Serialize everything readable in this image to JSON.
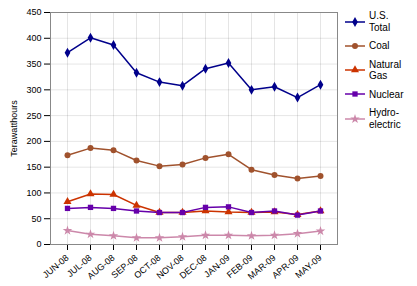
{
  "chart_data": {
    "type": "line",
    "categories": [
      "JUN-08",
      "JUL-08",
      "AUG-08",
      "SEP-08",
      "OCT-08",
      "NOV-08",
      "DEC-08",
      "JAN-09",
      "FEB-09",
      "MAR-09",
      "APR-09",
      "MAY-09"
    ],
    "series": [
      {
        "name": "U.S.\nTotal",
        "color": "#00008B",
        "marker": "diamond",
        "values": [
          372,
          401,
          387,
          333,
          315,
          308,
          341,
          352,
          300,
          306,
          285,
          310
        ]
      },
      {
        "name": "Coal",
        "color": "#A0522D",
        "marker": "circle",
        "values": [
          173,
          187,
          183,
          163,
          152,
          155,
          168,
          175,
          145,
          135,
          128,
          133
        ]
      },
      {
        "name": "Natural\nGas",
        "color": "#CC3300",
        "marker": "triangle",
        "values": [
          83,
          98,
          97,
          76,
          62,
          62,
          65,
          63,
          62,
          63,
          58,
          65
        ]
      },
      {
        "name": "Nuclear",
        "color": "#6600AA",
        "marker": "square",
        "values": [
          70,
          72,
          70,
          65,
          62,
          62,
          72,
          73,
          62,
          65,
          57,
          65
        ]
      },
      {
        "name": "Hydro-\nelectric",
        "color": "#CC88AA",
        "marker": "star",
        "values": [
          27,
          20,
          17,
          13,
          13,
          15,
          18,
          18,
          17,
          18,
          21,
          26
        ]
      }
    ],
    "ylabel": "Terawatthours",
    "ylim": [
      0,
      450
    ],
    "yticks": [
      0,
      50,
      100,
      150,
      200,
      250,
      300,
      350,
      400,
      450
    ],
    "grid": true,
    "legend": "right"
  }
}
